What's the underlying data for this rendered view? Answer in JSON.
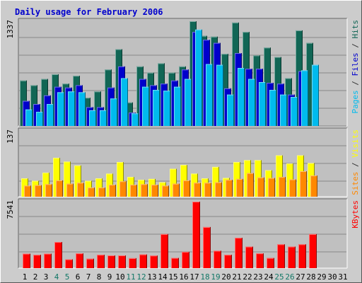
{
  "chart_data": [
    {
      "type": "bar",
      "title": "Daily usage for February 2006",
      "ymax_label": "1337",
      "categories": [
        "1",
        "2",
        "3",
        "4",
        "5",
        "6",
        "7",
        "8",
        "9",
        "10",
        "11",
        "12",
        "13",
        "14",
        "15",
        "16",
        "17",
        "18",
        "19",
        "20",
        "21",
        "22",
        "23",
        "24",
        "25",
        "26",
        "27",
        "28",
        "29",
        "30",
        "31"
      ],
      "weekend_days": [
        4,
        5,
        11,
        12,
        18,
        19,
        25,
        26
      ],
      "ylim": [
        0,
        1337
      ],
      "right_labels": [
        {
          "text": "Pages",
          "color": "#00bbee"
        },
        {
          "text": " / ",
          "color": "#333333"
        },
        {
          "text": "Files",
          "color": "#0000cc"
        },
        {
          "text": " / ",
          "color": "#333333"
        },
        {
          "text": "Hits",
          "color": "#116655"
        }
      ],
      "series": [
        {
          "name": "Hits",
          "color": "#116655",
          "values": [
            580,
            520,
            600,
            660,
            540,
            640,
            360,
            440,
            720,
            980,
            300,
            760,
            680,
            800,
            680,
            760,
            1337,
            1150,
            1140,
            920,
            1320,
            1200,
            900,
            1000,
            880,
            610,
            1220,
            1060,
            0,
            0,
            0
          ]
        },
        {
          "name": "Files",
          "color": "#0000cc",
          "values": [
            320,
            280,
            390,
            500,
            490,
            520,
            240,
            240,
            490,
            760,
            170,
            600,
            520,
            540,
            580,
            720,
            1200,
            1100,
            1060,
            480,
            930,
            730,
            730,
            550,
            540,
            400,
            700,
            0,
            0,
            0,
            0
          ]
        },
        {
          "name": "Pages",
          "color": "#00bbee",
          "values": [
            210,
            180,
            280,
            430,
            440,
            430,
            200,
            200,
            350,
            610,
            160,
            500,
            460,
            450,
            500,
            600,
            1230,
            790,
            780,
            400,
            740,
            600,
            560,
            460,
            400,
            370,
            710,
            780,
            0,
            0,
            0
          ]
        }
      ]
    },
    {
      "type": "bar",
      "ymax_label": "137",
      "ylim": [
        0,
        137
      ],
      "right_labels": [
        {
          "text": "Sites",
          "color": "#ff8800"
        },
        {
          "text": " / ",
          "color": "#333333"
        },
        {
          "text": "Visits",
          "color": "#ffff00"
        }
      ],
      "series": [
        {
          "name": "Visits",
          "color": "#ffff00",
          "values": [
            38,
            33,
            50,
            81,
            73,
            65,
            33,
            38,
            48,
            72,
            41,
            35,
            37,
            30,
            58,
            66,
            48,
            38,
            62,
            39,
            72,
            76,
            76,
            55,
            86,
            69,
            86,
            70,
            0,
            0,
            0
          ]
        },
        {
          "name": "Sites",
          "color": "#ff8800",
          "values": [
            23,
            24,
            26,
            34,
            27,
            29,
            19,
            19,
            25,
            32,
            25,
            26,
            25,
            23,
            27,
            34,
            29,
            29,
            30,
            35,
            37,
            49,
            40,
            39,
            41,
            36,
            53,
            44,
            0,
            0,
            0
          ]
        }
      ]
    },
    {
      "type": "bar",
      "ymax_label": "7541",
      "ylim": [
        0,
        7541
      ],
      "right_labels": [
        {
          "text": "KBytes",
          "color": "#ff0000"
        }
      ],
      "series": [
        {
          "name": "KBytes",
          "color": "#ff0000",
          "values": [
            1640,
            1510,
            1640,
            2960,
            1000,
            1670,
            1070,
            1510,
            1440,
            1440,
            1130,
            1550,
            1420,
            3860,
            1160,
            1850,
            7541,
            4660,
            1970,
            1510,
            3440,
            2440,
            1670,
            1150,
            2700,
            2440,
            2700,
            3860,
            0,
            0,
            0
          ]
        }
      ]
    }
  ]
}
